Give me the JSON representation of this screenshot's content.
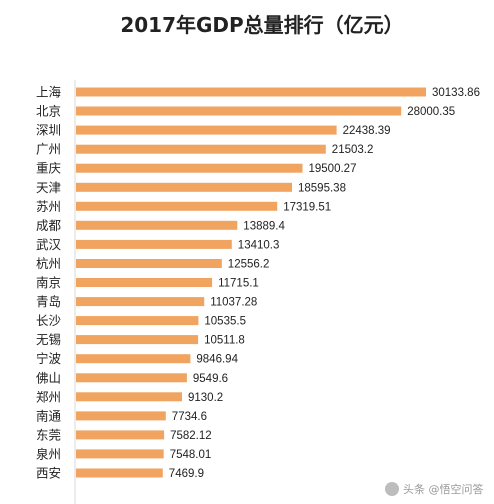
{
  "chart_data": {
    "type": "bar",
    "orientation": "horizontal",
    "title": "2017年GDP总量排行（亿元）",
    "xlabel": "",
    "ylabel": "",
    "xlim": [
      0,
      30133.86
    ],
    "grid": false,
    "legend": "none",
    "bar_color": "#F0A460",
    "categories": [
      "上海",
      "北京",
      "深圳",
      "广州",
      "重庆",
      "天津",
      "苏州",
      "成都",
      "武汉",
      "杭州",
      "南京",
      "青岛",
      "长沙",
      "无锡",
      "宁波",
      "佛山",
      "郑州",
      "南通",
      "东莞",
      "泉州",
      "西安"
    ],
    "values": [
      30133.86,
      28000.35,
      22438.39,
      21503.2,
      19500.27,
      18595.38,
      17319.51,
      13889.4,
      13410.3,
      12556.2,
      11715.1,
      11037.28,
      10535.5,
      10511.8,
      9846.94,
      9549.6,
      9130.2,
      7734.6,
      7582.12,
      7548.01,
      7469.9
    ],
    "value_labels": [
      "30133.86",
      "28000.35",
      "22438.39",
      "21503.2",
      "19500.27",
      "18595.38",
      "17319.51",
      "13889.4",
      "13410.3",
      "12556.2",
      "11715.1",
      "11037.28",
      "10535.5",
      "10511.8",
      "9846.94",
      "9549.6",
      "9130.2",
      "7734.6",
      "7582.12",
      "7548.01",
      "7469.9"
    ]
  },
  "watermark": {
    "text": "头条 @悟空问答",
    "icon": "wukong-logo-icon"
  }
}
